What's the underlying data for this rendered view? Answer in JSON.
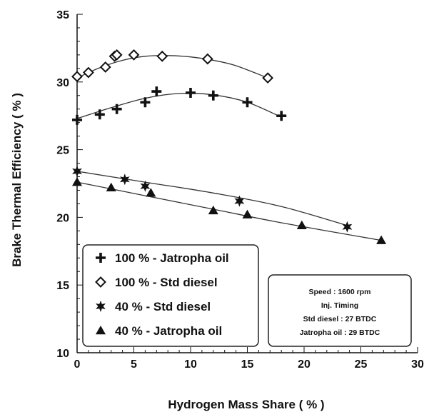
{
  "chart_data": {
    "type": "scatter",
    "xlabel": "Hydrogen Mass Share ( % )",
    "ylabel": "Brake Thermal Efficiency ( % )",
    "xlim": [
      0,
      30
    ],
    "ylim": [
      10,
      35
    ],
    "xticks": [
      0,
      5,
      10,
      15,
      20,
      25,
      30
    ],
    "yticks": [
      10,
      15,
      20,
      25,
      30,
      35
    ],
    "grid": false,
    "legend_position": "bottom-left",
    "series": [
      {
        "name": "100 % - Jatropha oil",
        "marker": "plus",
        "x": [
          0,
          2,
          3.5,
          6,
          7,
          10,
          12,
          15,
          18
        ],
        "y": [
          27.2,
          27.6,
          28.0,
          28.5,
          29.3,
          29.2,
          29.0,
          28.5,
          27.5
        ],
        "fit": [
          [
            0,
            27.3
          ],
          [
            3,
            28.1
          ],
          [
            6,
            28.8
          ],
          [
            9,
            29.15
          ],
          [
            12,
            29.05
          ],
          [
            15,
            28.5
          ],
          [
            18,
            27.4
          ]
        ]
      },
      {
        "name": "100 % - Std diesel",
        "marker": "diamond",
        "x": [
          0,
          1,
          2.5,
          3.3,
          3.5,
          5,
          7.5,
          11.5,
          16.8
        ],
        "y": [
          30.4,
          30.7,
          31.1,
          31.9,
          32.0,
          32.0,
          31.9,
          31.7,
          30.3
        ],
        "fit": [
          [
            0,
            30.3
          ],
          [
            2,
            31.05
          ],
          [
            4,
            31.6
          ],
          [
            6,
            31.9
          ],
          [
            8,
            31.95
          ],
          [
            10,
            31.85
          ],
          [
            12,
            31.6
          ],
          [
            14,
            31.2
          ],
          [
            16.8,
            30.3
          ]
        ]
      },
      {
        "name": "40 % - Std diesel",
        "marker": "star",
        "x": [
          0,
          4.2,
          6,
          14.3,
          23.8
        ],
        "y": [
          23.4,
          22.8,
          22.3,
          21.2,
          19.3
        ],
        "fit": [
          [
            0,
            23.4
          ],
          [
            6,
            22.6
          ],
          [
            12,
            21.8
          ],
          [
            18,
            20.8
          ],
          [
            23.8,
            19.4
          ]
        ]
      },
      {
        "name": "40 % - Jatropha oil",
        "marker": "triangle",
        "x": [
          0,
          3,
          6.5,
          12,
          15,
          19.8,
          26.8
        ],
        "y": [
          22.6,
          22.2,
          21.8,
          20.5,
          20.2,
          19.4,
          18.3
        ],
        "fit": [
          [
            0,
            22.6
          ],
          [
            6,
            21.6
          ],
          [
            12,
            20.6
          ],
          [
            18,
            19.6
          ],
          [
            26.8,
            18.3
          ]
        ]
      }
    ],
    "annotation": {
      "lines": [
        "Speed : 1600 rpm",
        "Inj. Timing",
        "Std diesel : 27 BTDC",
        "Jatropha oil : 29 BTDC"
      ]
    }
  }
}
